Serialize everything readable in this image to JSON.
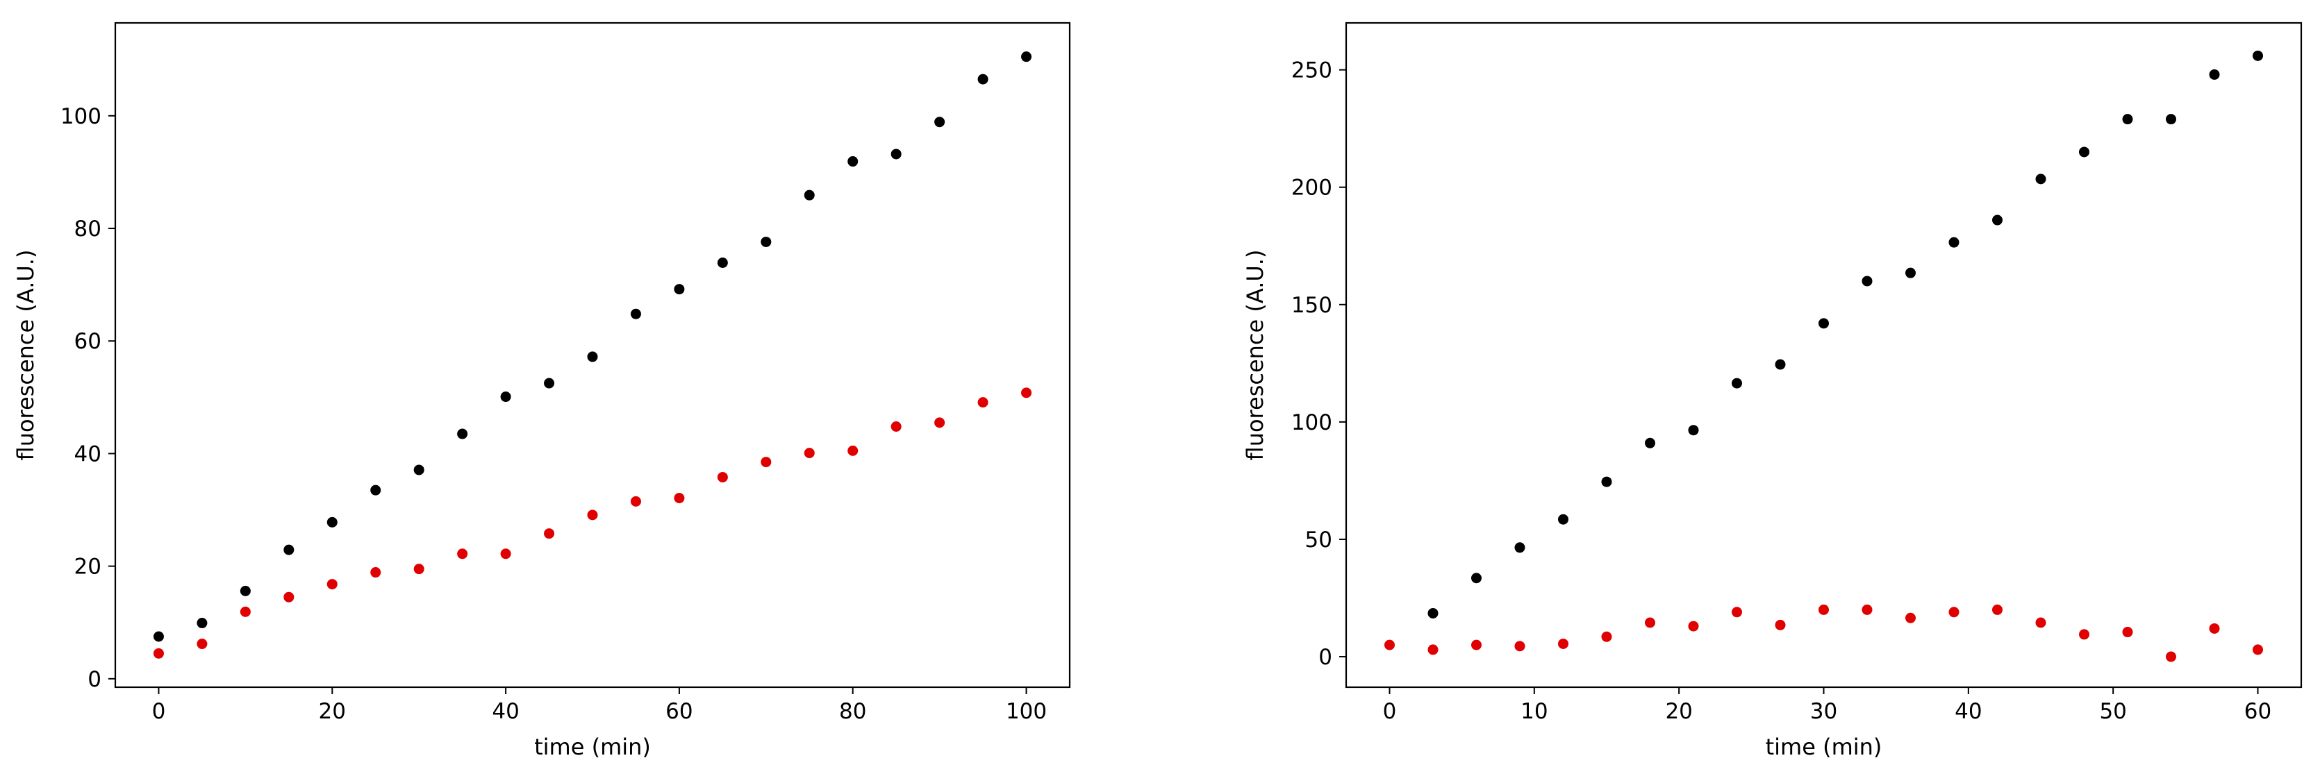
{
  "chart_data": [
    {
      "type": "scatter",
      "xlabel": "time (min)",
      "ylabel": "fluorescence (A.U.)",
      "xlim": [
        -5,
        105
      ],
      "ylim": [
        -1.5,
        116.5
      ],
      "xticks": [
        0,
        20,
        40,
        60,
        80,
        100
      ],
      "yticks": [
        0,
        20,
        40,
        60,
        80,
        100
      ],
      "grid": false,
      "series": [
        {
          "color": "#000000",
          "x": [
            0,
            5,
            10,
            15,
            20,
            25,
            30,
            35,
            40,
            45,
            50,
            55,
            60,
            65,
            70,
            75,
            80,
            85,
            90,
            95,
            100
          ],
          "y": [
            7.5,
            9.9,
            15.6,
            22.9,
            27.8,
            33.5,
            37.1,
            43.5,
            50.1,
            52.5,
            57.2,
            64.8,
            69.2,
            73.9,
            77.6,
            85.9,
            91.9,
            93.2,
            98.9,
            106.5,
            110.5
          ]
        },
        {
          "color": "#e00000",
          "x": [
            0,
            5,
            10,
            15,
            20,
            25,
            30,
            35,
            40,
            45,
            50,
            55,
            60,
            65,
            70,
            75,
            80,
            85,
            90,
            95,
            100
          ],
          "y": [
            4.5,
            6.2,
            11.9,
            14.5,
            16.8,
            18.9,
            19.5,
            22.2,
            22.2,
            25.8,
            29.1,
            31.5,
            32.1,
            35.8,
            38.5,
            40.1,
            40.5,
            44.8,
            45.5,
            49.1,
            50.8
          ]
        }
      ]
    },
    {
      "type": "scatter",
      "xlabel": "time (min)",
      "ylabel": "fluorescence (A.U.)",
      "xlim": [
        -3,
        63
      ],
      "ylim": [
        -13,
        270
      ],
      "xticks": [
        0,
        10,
        20,
        30,
        40,
        50,
        60
      ],
      "yticks": [
        0,
        50,
        100,
        150,
        200,
        250
      ],
      "grid": false,
      "series": [
        {
          "color": "#000000",
          "x": [
            3,
            6,
            9,
            12,
            15,
            18,
            21,
            24,
            27,
            30,
            33,
            36,
            39,
            42,
            45,
            48,
            51,
            54,
            57,
            60
          ],
          "y": [
            18.5,
            33.5,
            46.5,
            58.5,
            74.5,
            91,
            96.5,
            116.5,
            124.5,
            142,
            160,
            163.5,
            176.5,
            186,
            203.5,
            215,
            229,
            229,
            248,
            256
          ]
        },
        {
          "color": "#e00000",
          "x": [
            0,
            3,
            6,
            9,
            12,
            15,
            18,
            21,
            24,
            27,
            30,
            33,
            36,
            39,
            42,
            45,
            48,
            51,
            54,
            57,
            60
          ],
          "y": [
            5,
            3,
            5,
            4.5,
            5.5,
            8.5,
            14.5,
            13,
            19,
            13.5,
            20,
            20,
            16.5,
            19,
            20,
            14.5,
            9.5,
            10.5,
            0,
            12,
            3
          ]
        }
      ]
    }
  ]
}
